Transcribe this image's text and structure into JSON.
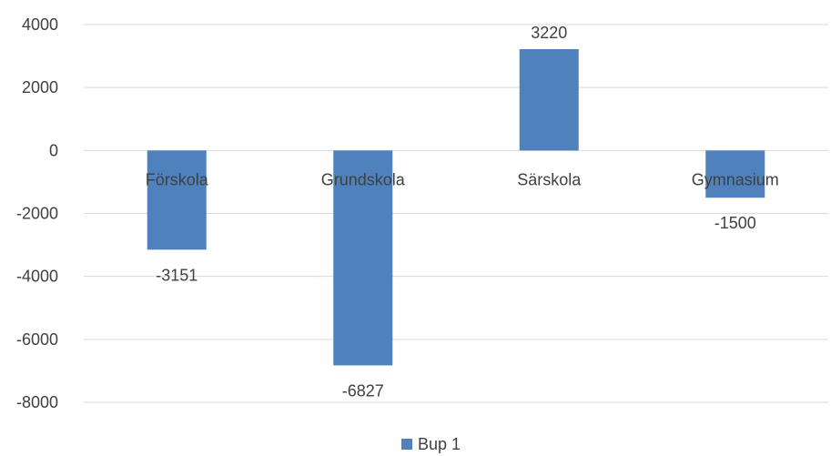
{
  "chart_data": {
    "type": "bar",
    "title": "",
    "xlabel": "",
    "ylabel": "",
    "categories": [
      "Förskola",
      "Grundskola",
      "Särskola",
      "Gymnasium"
    ],
    "series": [
      {
        "name": "Bup 1",
        "values": [
          -3151,
          -6827,
          3220,
          -1500
        ],
        "color": "#4F81BD"
      }
    ],
    "ylim": [
      -8000,
      4000
    ],
    "yticks": [
      4000,
      2000,
      0,
      -2000,
      -4000,
      -6000,
      -8000
    ],
    "grid": true,
    "data_labels": true,
    "legend_position": "bottom"
  },
  "colors": {
    "gridline": "#D9D9D9",
    "text": "#404040"
  }
}
